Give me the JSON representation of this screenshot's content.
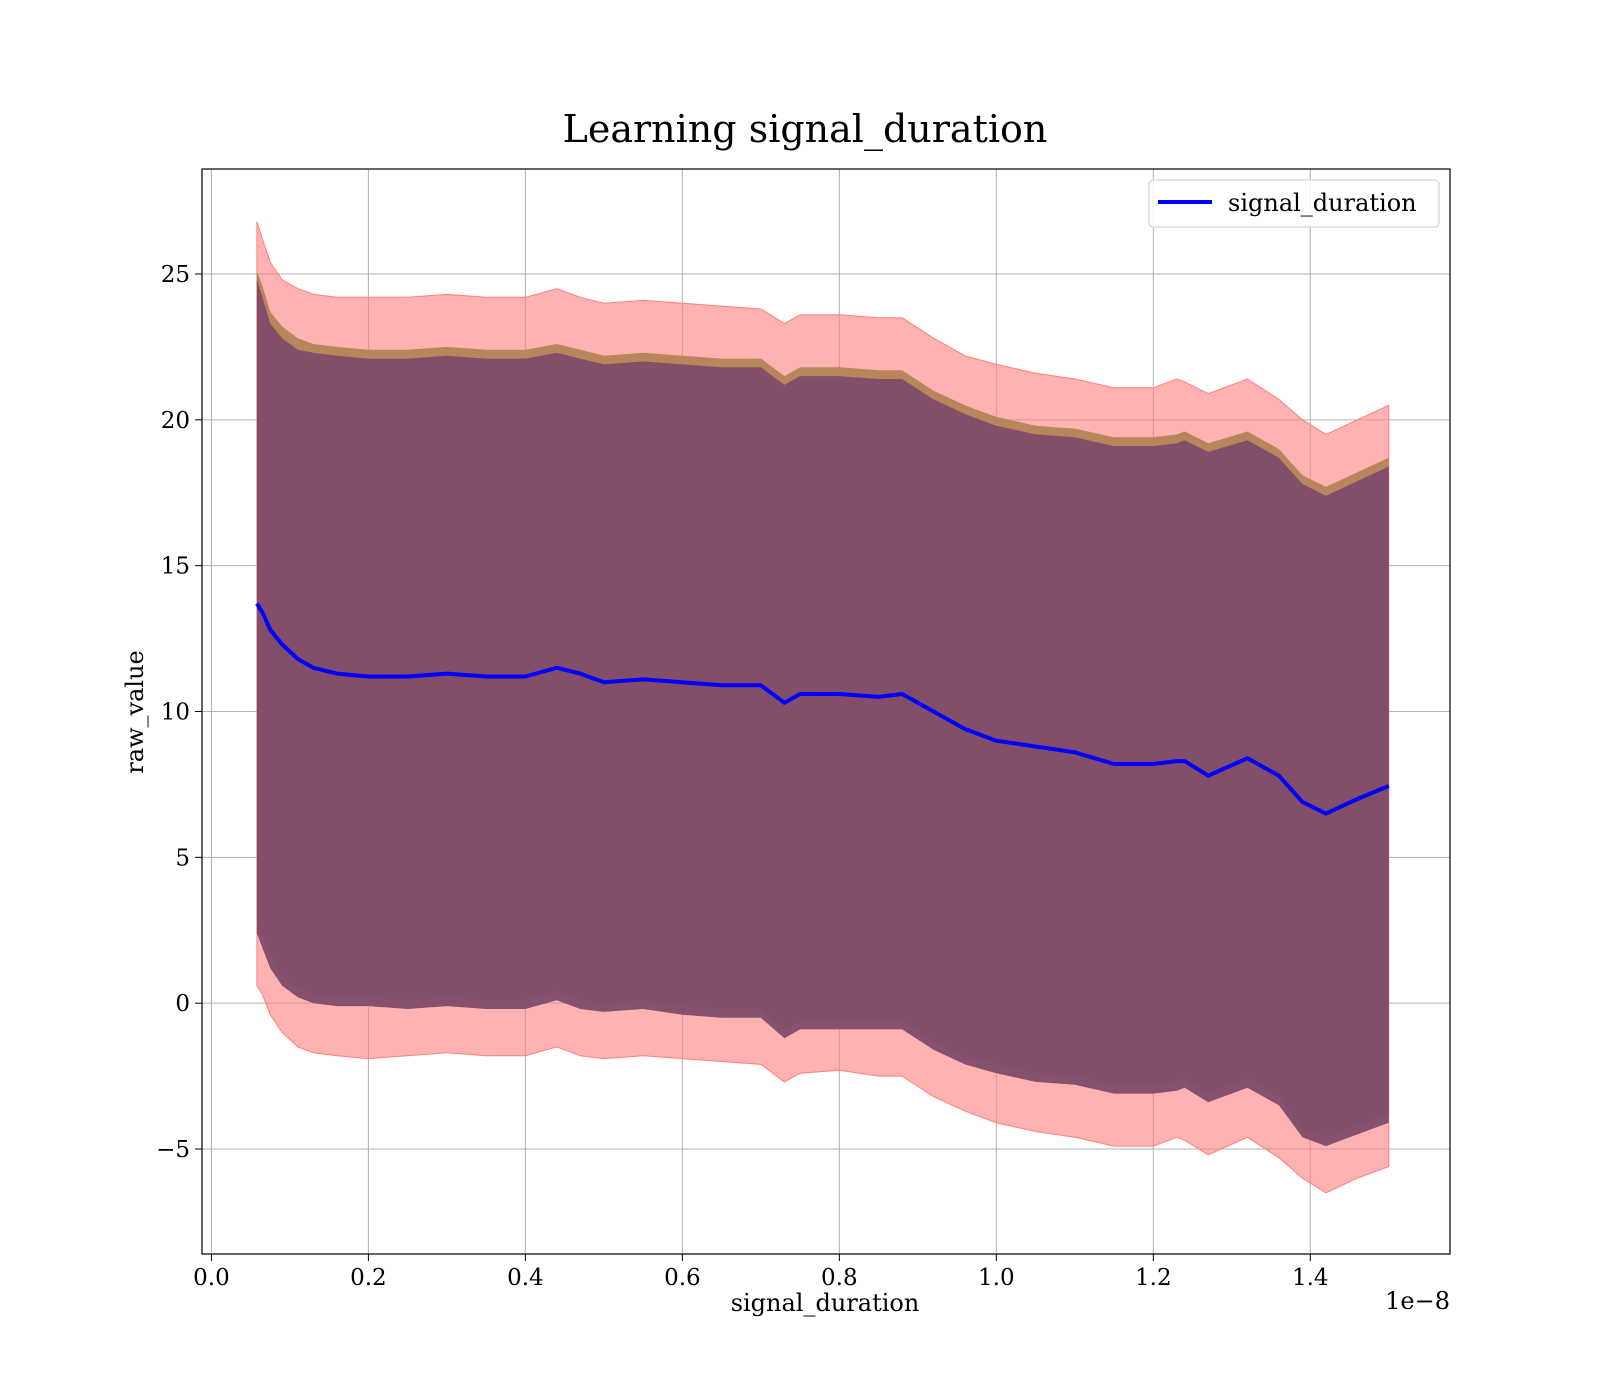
{
  "chart_data": {
    "type": "line",
    "title": "Learning signal_duration",
    "xlabel": "signal_duration",
    "ylabel": "raw_value",
    "x_offset_label": "1e−8",
    "xlim": [
      -0.012,
      1.578
    ],
    "ylim": [
      -8.6,
      28.6
    ],
    "x_ticks": [
      0.0,
      0.2,
      0.4,
      0.6,
      0.8,
      1.0,
      1.2,
      1.4
    ],
    "x_tick_labels": [
      "0.0",
      "0.2",
      "0.4",
      "0.6",
      "0.8",
      "1.0",
      "1.2",
      "1.4"
    ],
    "y_ticks": [
      -5,
      0,
      5,
      10,
      15,
      20,
      25
    ],
    "y_tick_labels": [
      "−5",
      "0",
      "5",
      "10",
      "15",
      "20",
      "25"
    ],
    "grid": true,
    "legend": {
      "position": "top-right",
      "entries": [
        "signal_duration"
      ]
    },
    "colors": {
      "line": "#0000ff",
      "outer_band": "#ff7f7f",
      "mid_band": "#b8865b",
      "inner_band": "#7f4b6b"
    },
    "series": [
      {
        "name": "signal_duration",
        "x": [
          0.058,
          0.065,
          0.075,
          0.09,
          0.11,
          0.13,
          0.16,
          0.2,
          0.25,
          0.3,
          0.35,
          0.4,
          0.44,
          0.47,
          0.5,
          0.55,
          0.6,
          0.65,
          0.7,
          0.73,
          0.75,
          0.8,
          0.85,
          0.88,
          0.92,
          0.96,
          1.0,
          1.05,
          1.1,
          1.15,
          1.2,
          1.23,
          1.24,
          1.27,
          1.32,
          1.36,
          1.39,
          1.42,
          1.46,
          1.5
        ],
        "y": [
          13.7,
          13.4,
          12.8,
          12.3,
          11.8,
          11.5,
          11.3,
          11.2,
          11.2,
          11.3,
          11.2,
          11.2,
          11.5,
          11.3,
          11.0,
          11.1,
          11.0,
          10.9,
          10.9,
          10.3,
          10.6,
          10.6,
          10.5,
          10.6,
          10.0,
          9.4,
          9.0,
          8.8,
          8.6,
          8.2,
          8.2,
          8.3,
          8.3,
          7.8,
          8.4,
          7.8,
          6.9,
          6.5,
          7.0,
          7.45
        ]
      }
    ],
    "bands": {
      "outer_upper": [
        26.8,
        26.2,
        25.4,
        24.8,
        24.5,
        24.3,
        24.2,
        24.2,
        24.2,
        24.3,
        24.2,
        24.2,
        24.5,
        24.2,
        24.0,
        24.1,
        24.0,
        23.9,
        23.8,
        23.3,
        23.6,
        23.6,
        23.5,
        23.5,
        22.8,
        22.2,
        21.9,
        21.6,
        21.4,
        21.1,
        21.1,
        21.4,
        21.3,
        20.9,
        21.4,
        20.7,
        20.0,
        19.5,
        20.0,
        20.5
      ],
      "outer_lower": [
        0.6,
        0.3,
        -0.4,
        -1.0,
        -1.5,
        -1.7,
        -1.8,
        -1.9,
        -1.8,
        -1.7,
        -1.8,
        -1.8,
        -1.5,
        -1.8,
        -1.9,
        -1.8,
        -1.9,
        -2.0,
        -2.1,
        -2.7,
        -2.4,
        -2.3,
        -2.5,
        -2.5,
        -3.2,
        -3.7,
        -4.1,
        -4.4,
        -4.6,
        -4.9,
        -4.9,
        -4.6,
        -4.7,
        -5.2,
        -4.6,
        -5.3,
        -6.0,
        -6.5,
        -6.0,
        -5.6
      ],
      "mid_upper": [
        25.1,
        24.6,
        23.7,
        23.2,
        22.8,
        22.6,
        22.5,
        22.4,
        22.4,
        22.5,
        22.4,
        22.4,
        22.6,
        22.4,
        22.2,
        22.3,
        22.2,
        22.1,
        22.1,
        21.5,
        21.8,
        21.8,
        21.7,
        21.7,
        21.0,
        20.5,
        20.1,
        19.8,
        19.7,
        19.4,
        19.4,
        19.5,
        19.6,
        19.2,
        19.6,
        19.0,
        18.1,
        17.7,
        18.2,
        18.7
      ],
      "mid_lower": [
        2.7,
        2.3,
        1.6,
        1.0,
        0.5,
        0.3,
        0.2,
        0.2,
        0.1,
        0.2,
        0.1,
        0.1,
        0.4,
        0.1,
        0.0,
        0.1,
        -0.1,
        -0.2,
        -0.2,
        -0.9,
        -0.6,
        -0.6,
        -0.6,
        -0.6,
        -1.3,
        -1.8,
        -2.1,
        -2.4,
        -2.5,
        -2.8,
        -2.8,
        -2.7,
        -2.6,
        -3.1,
        -2.6,
        -3.2,
        -4.3,
        -4.6,
        -4.2,
        -3.8
      ],
      "inner_upper": [
        24.8,
        24.2,
        23.3,
        22.8,
        22.4,
        22.3,
        22.2,
        22.1,
        22.1,
        22.2,
        22.1,
        22.1,
        22.3,
        22.1,
        21.9,
        22.0,
        21.9,
        21.8,
        21.8,
        21.2,
        21.5,
        21.5,
        21.4,
        21.4,
        20.7,
        20.2,
        19.8,
        19.5,
        19.4,
        19.1,
        19.1,
        19.2,
        19.3,
        18.9,
        19.3,
        18.7,
        17.8,
        17.4,
        17.9,
        18.4
      ],
      "inner_lower": [
        2.4,
        1.9,
        1.2,
        0.6,
        0.2,
        0.0,
        -0.1,
        -0.1,
        -0.2,
        -0.1,
        -0.2,
        -0.2,
        0.1,
        -0.2,
        -0.3,
        -0.2,
        -0.4,
        -0.5,
        -0.5,
        -1.2,
        -0.9,
        -0.9,
        -0.9,
        -0.9,
        -1.6,
        -2.1,
        -2.4,
        -2.7,
        -2.8,
        -3.1,
        -3.1,
        -3.0,
        -2.9,
        -3.4,
        -2.9,
        -3.5,
        -4.6,
        -4.9,
        -4.5,
        -4.1
      ]
    }
  }
}
